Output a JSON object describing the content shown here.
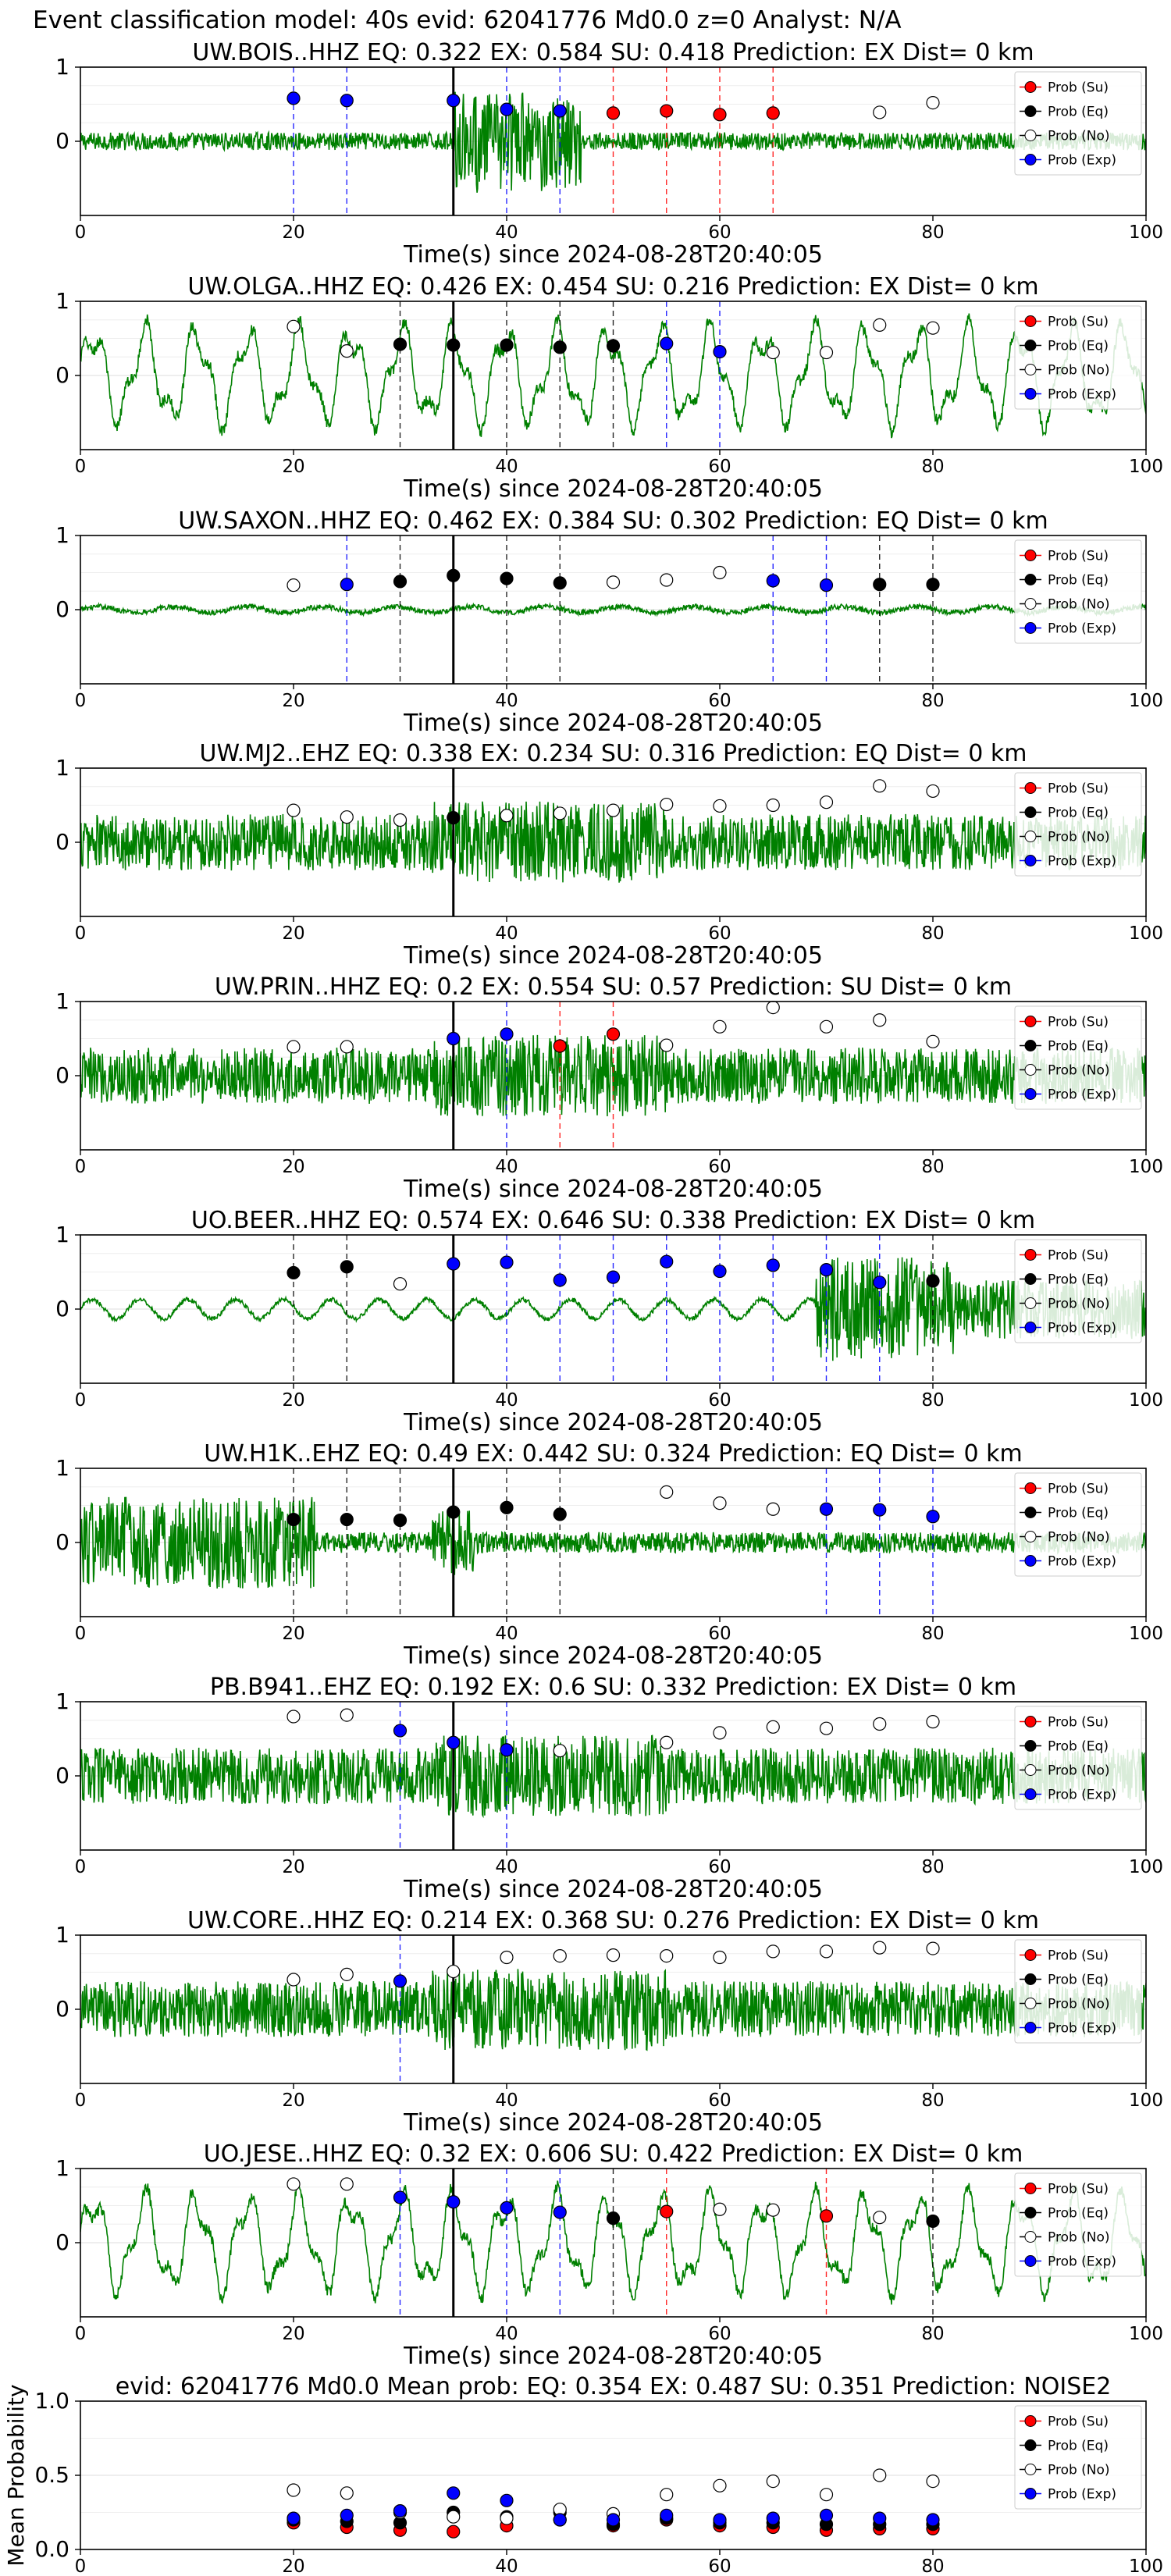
{
  "figure": {
    "suptitle": "Event classification model: 40s evid: 62041776 Md0.0 z=0 Analyst: N/A"
  },
  "legend_labels": [
    "Prob (Su)",
    "Prob (Eq)",
    "Prob (No)",
    "Prob (Exp)"
  ],
  "colors": {
    "waveform": "#008000",
    "su": "#ff0000",
    "eq": "#000000",
    "no": "#ffffff",
    "exp": "#0000ff",
    "arrival_line": "#000000",
    "grid": "#dddddd"
  },
  "chart_data": [
    {
      "type": "line",
      "title": "UW.BOIS..HHZ   EQ: 0.322  EX: 0.584  SU: 0.418   Prediction: EX    Dist= 0 km",
      "xlabel": "Time(s) since 2024-08-28T20:40:05",
      "xlim": [
        0,
        100
      ],
      "ylim": [
        -1,
        1
      ],
      "xticks": [
        0,
        20,
        40,
        60,
        80,
        100
      ],
      "yticks": [
        0,
        1
      ],
      "arrival_time": 35,
      "waveform_character": "impulsive",
      "points": [
        {
          "x": 20,
          "y": 0.58,
          "class": "exp"
        },
        {
          "x": 25,
          "y": 0.55,
          "class": "exp"
        },
        {
          "x": 35,
          "y": 0.55,
          "class": "exp"
        },
        {
          "x": 40,
          "y": 0.43,
          "class": "exp"
        },
        {
          "x": 45,
          "y": 0.41,
          "class": "exp"
        },
        {
          "x": 50,
          "y": 0.38,
          "class": "su"
        },
        {
          "x": 55,
          "y": 0.41,
          "class": "su"
        },
        {
          "x": 60,
          "y": 0.36,
          "class": "su"
        },
        {
          "x": 65,
          "y": 0.38,
          "class": "su"
        },
        {
          "x": 75,
          "y": 0.39,
          "class": "no"
        },
        {
          "x": 80,
          "y": 0.52,
          "class": "no"
        }
      ]
    },
    {
      "type": "line",
      "title": "UW.OLGA..HHZ   EQ: 0.426  EX: 0.454  SU: 0.216   Prediction: EX    Dist= 0 km",
      "xlabel": "Time(s) since 2024-08-28T20:40:05",
      "xlim": [
        0,
        100
      ],
      "ylim": [
        -1,
        1
      ],
      "xticks": [
        0,
        20,
        40,
        60,
        80,
        100
      ],
      "yticks": [
        0,
        1
      ],
      "arrival_time": 35,
      "waveform_character": "lowfreq",
      "points": [
        {
          "x": 20,
          "y": 0.66,
          "class": "no"
        },
        {
          "x": 25,
          "y": 0.33,
          "class": "no"
        },
        {
          "x": 30,
          "y": 0.42,
          "class": "eq"
        },
        {
          "x": 35,
          "y": 0.41,
          "class": "eq"
        },
        {
          "x": 40,
          "y": 0.41,
          "class": "eq"
        },
        {
          "x": 45,
          "y": 0.38,
          "class": "eq"
        },
        {
          "x": 50,
          "y": 0.4,
          "class": "eq"
        },
        {
          "x": 55,
          "y": 0.43,
          "class": "exp"
        },
        {
          "x": 60,
          "y": 0.32,
          "class": "exp"
        },
        {
          "x": 65,
          "y": 0.31,
          "class": "no"
        },
        {
          "x": 70,
          "y": 0.31,
          "class": "no"
        },
        {
          "x": 75,
          "y": 0.68,
          "class": "no"
        },
        {
          "x": 80,
          "y": 0.64,
          "class": "no"
        }
      ]
    },
    {
      "type": "line",
      "title": "UW.SAXON..HHZ   EQ: 0.462  EX: 0.384  SU: 0.302   Prediction: EQ    Dist= 0 km",
      "xlabel": "Time(s) since 2024-08-28T20:40:05",
      "xlim": [
        0,
        100
      ],
      "ylim": [
        -1,
        1
      ],
      "xticks": [
        0,
        20,
        40,
        60,
        80,
        100
      ],
      "yticks": [
        0,
        1
      ],
      "arrival_time": 35,
      "waveform_character": "quiet",
      "points": [
        {
          "x": 20,
          "y": 0.33,
          "class": "no"
        },
        {
          "x": 25,
          "y": 0.34,
          "class": "exp"
        },
        {
          "x": 30,
          "y": 0.38,
          "class": "eq"
        },
        {
          "x": 35,
          "y": 0.46,
          "class": "eq"
        },
        {
          "x": 40,
          "y": 0.42,
          "class": "eq"
        },
        {
          "x": 45,
          "y": 0.36,
          "class": "eq"
        },
        {
          "x": 50,
          "y": 0.37,
          "class": "no"
        },
        {
          "x": 55,
          "y": 0.4,
          "class": "no"
        },
        {
          "x": 60,
          "y": 0.5,
          "class": "no"
        },
        {
          "x": 65,
          "y": 0.39,
          "class": "exp"
        },
        {
          "x": 70,
          "y": 0.33,
          "class": "exp"
        },
        {
          "x": 75,
          "y": 0.34,
          "class": "eq"
        },
        {
          "x": 80,
          "y": 0.34,
          "class": "eq"
        }
      ]
    },
    {
      "type": "line",
      "title": "UW.MJ2..EHZ   EQ: 0.338  EX: 0.234  SU: 0.316   Prediction: EQ    Dist= 0 km",
      "xlabel": "Time(s) since 2024-08-28T20:40:05",
      "xlim": [
        0,
        100
      ],
      "ylim": [
        -1,
        1
      ],
      "xticks": [
        0,
        20,
        40,
        60,
        80,
        100
      ],
      "yticks": [
        0,
        1
      ],
      "arrival_time": 35,
      "waveform_character": "noisy",
      "points": [
        {
          "x": 20,
          "y": 0.43,
          "class": "no"
        },
        {
          "x": 25,
          "y": 0.34,
          "class": "no"
        },
        {
          "x": 30,
          "y": 0.3,
          "class": "no"
        },
        {
          "x": 35,
          "y": 0.33,
          "class": "eq"
        },
        {
          "x": 40,
          "y": 0.36,
          "class": "no"
        },
        {
          "x": 45,
          "y": 0.39,
          "class": "no"
        },
        {
          "x": 50,
          "y": 0.43,
          "class": "no"
        },
        {
          "x": 55,
          "y": 0.51,
          "class": "no"
        },
        {
          "x": 60,
          "y": 0.49,
          "class": "no"
        },
        {
          "x": 65,
          "y": 0.5,
          "class": "no"
        },
        {
          "x": 70,
          "y": 0.54,
          "class": "no"
        },
        {
          "x": 75,
          "y": 0.76,
          "class": "no"
        },
        {
          "x": 80,
          "y": 0.69,
          "class": "no"
        }
      ]
    },
    {
      "type": "line",
      "title": "UW.PRIN..HHZ   EQ: 0.2  EX: 0.554  SU: 0.57   Prediction: SU    Dist= 0 km",
      "xlabel": "Time(s) since 2024-08-28T20:40:05",
      "xlim": [
        0,
        100
      ],
      "ylim": [
        -1,
        1
      ],
      "xticks": [
        0,
        20,
        40,
        60,
        80,
        100
      ],
      "yticks": [
        0,
        1
      ],
      "arrival_time": 35,
      "waveform_character": "noisy",
      "points": [
        {
          "x": 20,
          "y": 0.39,
          "class": "no"
        },
        {
          "x": 25,
          "y": 0.39,
          "class": "no"
        },
        {
          "x": 35,
          "y": 0.5,
          "class": "exp"
        },
        {
          "x": 40,
          "y": 0.56,
          "class": "exp"
        },
        {
          "x": 45,
          "y": 0.4,
          "class": "su"
        },
        {
          "x": 50,
          "y": 0.56,
          "class": "su"
        },
        {
          "x": 55,
          "y": 0.41,
          "class": "no"
        },
        {
          "x": 60,
          "y": 0.66,
          "class": "no"
        },
        {
          "x": 65,
          "y": 0.92,
          "class": "no"
        },
        {
          "x": 70,
          "y": 0.66,
          "class": "no"
        },
        {
          "x": 75,
          "y": 0.75,
          "class": "no"
        },
        {
          "x": 80,
          "y": 0.46,
          "class": "no"
        }
      ]
    },
    {
      "type": "line",
      "title": "UO.BEER..HHZ   EQ: 0.574  EX: 0.646  SU: 0.338   Prediction: EX    Dist= 0 km",
      "xlabel": "Time(s) since 2024-08-28T20:40:05",
      "xlim": [
        0,
        100
      ],
      "ylim": [
        -1,
        1
      ],
      "xticks": [
        0,
        20,
        40,
        60,
        80,
        100
      ],
      "yticks": [
        0,
        1
      ],
      "arrival_time": 35,
      "waveform_character": "late_burst",
      "points": [
        {
          "x": 20,
          "y": 0.49,
          "class": "eq"
        },
        {
          "x": 25,
          "y": 0.57,
          "class": "eq"
        },
        {
          "x": 30,
          "y": 0.34,
          "class": "no"
        },
        {
          "x": 35,
          "y": 0.61,
          "class": "exp"
        },
        {
          "x": 40,
          "y": 0.63,
          "class": "exp"
        },
        {
          "x": 45,
          "y": 0.39,
          "class": "exp"
        },
        {
          "x": 50,
          "y": 0.43,
          "class": "exp"
        },
        {
          "x": 55,
          "y": 0.64,
          "class": "exp"
        },
        {
          "x": 60,
          "y": 0.51,
          "class": "exp"
        },
        {
          "x": 65,
          "y": 0.59,
          "class": "exp"
        },
        {
          "x": 70,
          "y": 0.53,
          "class": "exp"
        },
        {
          "x": 75,
          "y": 0.36,
          "class": "exp"
        },
        {
          "x": 80,
          "y": 0.38,
          "class": "eq"
        }
      ]
    },
    {
      "type": "line",
      "title": "UW.H1K..EHZ   EQ: 0.49  EX: 0.442  SU: 0.324   Prediction: EQ    Dist= 0 km",
      "xlabel": "Time(s) since 2024-08-28T20:40:05",
      "xlim": [
        0,
        100
      ],
      "ylim": [
        -1,
        1
      ],
      "xticks": [
        0,
        20,
        40,
        60,
        80,
        100
      ],
      "yticks": [
        0,
        1
      ],
      "arrival_time": 35,
      "waveform_character": "early_burst",
      "points": [
        {
          "x": 20,
          "y": 0.31,
          "class": "eq"
        },
        {
          "x": 25,
          "y": 0.31,
          "class": "eq"
        },
        {
          "x": 30,
          "y": 0.3,
          "class": "eq"
        },
        {
          "x": 35,
          "y": 0.41,
          "class": "eq"
        },
        {
          "x": 40,
          "y": 0.47,
          "class": "eq"
        },
        {
          "x": 45,
          "y": 0.38,
          "class": "eq"
        },
        {
          "x": 55,
          "y": 0.68,
          "class": "no"
        },
        {
          "x": 60,
          "y": 0.53,
          "class": "no"
        },
        {
          "x": 65,
          "y": 0.45,
          "class": "no"
        },
        {
          "x": 70,
          "y": 0.45,
          "class": "exp"
        },
        {
          "x": 75,
          "y": 0.44,
          "class": "exp"
        },
        {
          "x": 80,
          "y": 0.35,
          "class": "exp"
        }
      ]
    },
    {
      "type": "line",
      "title": "PB.B941..EHZ   EQ: 0.192  EX: 0.6  SU: 0.332   Prediction: EX    Dist= 0 km",
      "xlabel": "Time(s) since 2024-08-28T20:40:05",
      "xlim": [
        0,
        100
      ],
      "ylim": [
        -1,
        1
      ],
      "xticks": [
        0,
        20,
        40,
        60,
        80,
        100
      ],
      "yticks": [
        0,
        1
      ],
      "arrival_time": 35,
      "waveform_character": "noisy",
      "points": [
        {
          "x": 20,
          "y": 0.8,
          "class": "no"
        },
        {
          "x": 25,
          "y": 0.82,
          "class": "no"
        },
        {
          "x": 30,
          "y": 0.61,
          "class": "exp"
        },
        {
          "x": 35,
          "y": 0.45,
          "class": "exp"
        },
        {
          "x": 40,
          "y": 0.35,
          "class": "exp"
        },
        {
          "x": 45,
          "y": 0.34,
          "class": "no"
        },
        {
          "x": 55,
          "y": 0.45,
          "class": "no"
        },
        {
          "x": 60,
          "y": 0.58,
          "class": "no"
        },
        {
          "x": 65,
          "y": 0.66,
          "class": "no"
        },
        {
          "x": 70,
          "y": 0.64,
          "class": "no"
        },
        {
          "x": 75,
          "y": 0.7,
          "class": "no"
        },
        {
          "x": 80,
          "y": 0.73,
          "class": "no"
        }
      ]
    },
    {
      "type": "line",
      "title": "UW.CORE..HHZ   EQ: 0.214  EX: 0.368  SU: 0.276   Prediction: EX    Dist= 0 km",
      "xlabel": "Time(s) since 2024-08-28T20:40:05",
      "xlim": [
        0,
        100
      ],
      "ylim": [
        -1,
        1
      ],
      "xticks": [
        0,
        20,
        40,
        60,
        80,
        100
      ],
      "yticks": [
        0,
        1
      ],
      "arrival_time": 35,
      "waveform_character": "noisy",
      "points": [
        {
          "x": 20,
          "y": 0.4,
          "class": "no"
        },
        {
          "x": 25,
          "y": 0.47,
          "class": "no"
        },
        {
          "x": 30,
          "y": 0.38,
          "class": "exp"
        },
        {
          "x": 35,
          "y": 0.51,
          "class": "no"
        },
        {
          "x": 40,
          "y": 0.7,
          "class": "no"
        },
        {
          "x": 45,
          "y": 0.72,
          "class": "no"
        },
        {
          "x": 50,
          "y": 0.73,
          "class": "no"
        },
        {
          "x": 55,
          "y": 0.72,
          "class": "no"
        },
        {
          "x": 60,
          "y": 0.7,
          "class": "no"
        },
        {
          "x": 65,
          "y": 0.78,
          "class": "no"
        },
        {
          "x": 70,
          "y": 0.78,
          "class": "no"
        },
        {
          "x": 75,
          "y": 0.83,
          "class": "no"
        },
        {
          "x": 80,
          "y": 0.82,
          "class": "no"
        }
      ]
    },
    {
      "type": "line",
      "title": "UO.JESE..HHZ   EQ: 0.32  EX: 0.606  SU: 0.422   Prediction: EX    Dist= 0 km",
      "xlabel": "Time(s) since 2024-08-28T20:40:05",
      "xlim": [
        0,
        100
      ],
      "ylim": [
        -1,
        1
      ],
      "xticks": [
        0,
        20,
        40,
        60,
        80,
        100
      ],
      "yticks": [
        0,
        1
      ],
      "arrival_time": 35,
      "waveform_character": "lowfreq",
      "points": [
        {
          "x": 20,
          "y": 0.79,
          "class": "no"
        },
        {
          "x": 25,
          "y": 0.79,
          "class": "no"
        },
        {
          "x": 30,
          "y": 0.61,
          "class": "exp"
        },
        {
          "x": 35,
          "y": 0.55,
          "class": "exp"
        },
        {
          "x": 40,
          "y": 0.47,
          "class": "exp"
        },
        {
          "x": 45,
          "y": 0.41,
          "class": "exp"
        },
        {
          "x": 50,
          "y": 0.33,
          "class": "eq"
        },
        {
          "x": 55,
          "y": 0.42,
          "class": "su"
        },
        {
          "x": 60,
          "y": 0.45,
          "class": "no"
        },
        {
          "x": 65,
          "y": 0.44,
          "class": "no"
        },
        {
          "x": 70,
          "y": 0.36,
          "class": "su"
        },
        {
          "x": 75,
          "y": 0.34,
          "class": "no"
        },
        {
          "x": 80,
          "y": 0.29,
          "class": "eq"
        }
      ]
    },
    {
      "type": "scatter",
      "title": "evid: 62041776  Md0.0   Mean prob:   EQ: 0.354  EX: 0.487  SU: 0.351   Prediction: NOISE2",
      "ylabel": "Mean Probability",
      "xlim": [
        0,
        100
      ],
      "ylim": [
        0,
        1
      ],
      "xticks": [
        0,
        20,
        40,
        60,
        80,
        100
      ],
      "yticks": [
        0.0,
        0.5,
        1.0
      ],
      "ytick_labels": [
        "0.0",
        "0.5",
        "1.0"
      ],
      "series": [
        {
          "name": "Prob (Su)",
          "class": "su",
          "x": [
            20,
            25,
            30,
            35,
            40,
            45,
            50,
            55,
            60,
            65,
            70,
            75,
            80
          ],
          "y": [
            0.18,
            0.15,
            0.13,
            0.12,
            0.16,
            0.2,
            0.16,
            0.2,
            0.16,
            0.15,
            0.13,
            0.14,
            0.14
          ]
        },
        {
          "name": "Prob (Eq)",
          "class": "eq",
          "x": [
            20,
            25,
            30,
            35,
            40,
            45,
            50,
            55,
            60,
            65,
            70,
            75,
            80
          ],
          "y": [
            0.2,
            0.19,
            0.18,
            0.25,
            0.22,
            0.25,
            0.17,
            0.21,
            0.18,
            0.18,
            0.17,
            0.17,
            0.17
          ]
        },
        {
          "name": "Prob (No)",
          "class": "no",
          "x": [
            20,
            25,
            30,
            35,
            40,
            45,
            50,
            55,
            60,
            65,
            70,
            75,
            80
          ],
          "y": [
            0.4,
            0.38,
            0.25,
            0.22,
            0.21,
            0.27,
            0.24,
            0.37,
            0.43,
            0.46,
            0.37,
            0.5,
            0.46
          ]
        },
        {
          "name": "Prob (Exp)",
          "class": "exp",
          "x": [
            20,
            25,
            30,
            35,
            40,
            45,
            50,
            55,
            60,
            65,
            70,
            75,
            80
          ],
          "y": [
            0.21,
            0.23,
            0.26,
            0.38,
            0.33,
            0.2,
            0.2,
            0.23,
            0.2,
            0.21,
            0.23,
            0.21,
            0.2
          ]
        }
      ]
    }
  ]
}
